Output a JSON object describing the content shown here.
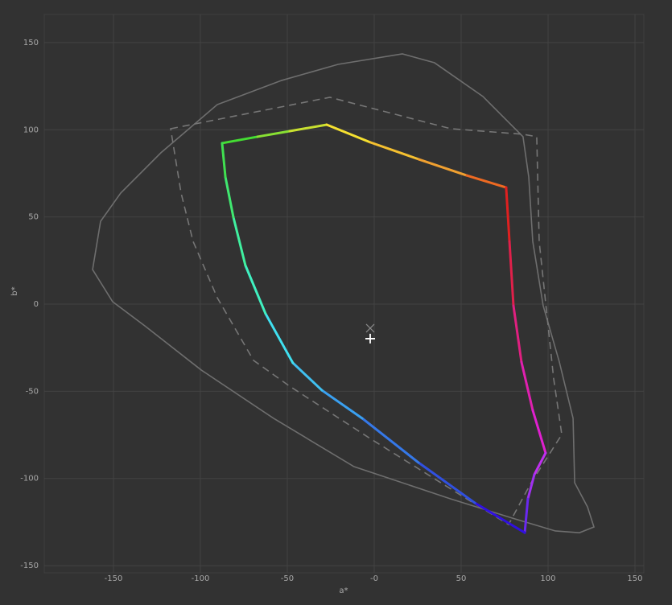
{
  "chart_data": {
    "type": "line",
    "x_label": "a*",
    "y_label": "b*",
    "xlim": [
      -189.8,
      155.1
    ],
    "ylim": [
      -154.1,
      166.1
    ],
    "xticks": [
      -150,
      -100,
      -50,
      {
        "value": 0,
        "label": "-0"
      },
      50,
      100,
      150
    ],
    "yticks": [
      -150,
      -100,
      -50,
      0,
      50,
      100,
      150
    ],
    "grid": true,
    "series": [
      {
        "color": "#6e6e6e",
        "dash": "solid",
        "closed": true,
        "x": [
          -162.0,
          -157.4,
          -145.8,
          -122.7,
          -90.3,
          -53.2,
          -20.8,
          16.2,
          34.7,
          62.5,
          85.6,
          88.9,
          91.2,
          97.2,
          106.5,
          114.4,
          115.3,
          122.7,
          126.4,
          118.1,
          104.2,
          81.0,
          44.0,
          -11.6,
          -57.9,
          -99.5,
          -131.9,
          -150.5
        ],
        "y": [
          19.8,
          47.5,
          63.7,
          86.8,
          114.4,
          128.3,
          137.5,
          143.5,
          138.4,
          119.1,
          96.0,
          72.9,
          36.0,
          -0.9,
          -33.2,
          -65.5,
          -102.4,
          -116.3,
          -127.8,
          -131.1,
          -130.1,
          -123.2,
          -111.7,
          -93.2,
          -65.5,
          -37.8,
          -12.5,
          1.4
        ]
      },
      {
        "color": "#767676",
        "dash": "dashed",
        "closed": true,
        "x": [
          -117.1,
          -25.5,
          44.0,
          85.6,
          93.5,
          94.9,
          103.2,
          107.9,
          90.3,
          77.3,
          53.2,
          -2.3,
          -48.6,
          -69.4,
          -90.3,
          -104.2,
          -111.1
        ],
        "y": [
          100.6,
          118.6,
          100.6,
          97.4,
          96.0,
          36.0,
          -42.5,
          -74.8,
          -102.4,
          -126.4,
          -111.7,
          -77.1,
          -47.1,
          -32.3,
          3.7,
          36.0,
          63.7
        ]
      },
      {
        "colors": [
          "#44dd33",
          "#88e033",
          "#c8e030",
          "#f5e030",
          "#f5c030",
          "#f0a030",
          "#ee6a22",
          "#e02020",
          "#e0204a",
          "#e02080",
          "#e020b0",
          "#e020d0",
          "#c030f0",
          "#a030f0",
          "#6a28f0",
          "#3010e0",
          "#3050e0",
          "#3578e8",
          "#3aa0f0",
          "#40c0f0",
          "#40e0f0",
          "#40f0c0",
          "#40f0a0",
          "#40e870",
          "#40e050"
        ],
        "dash": "solid",
        "closed": true,
        "x": [
          -87.5,
          -67.1,
          -48.6,
          -27.3,
          -2.3,
          25.5,
          53.2,
          75.9,
          77.8,
          80.1,
          84.7,
          91.2,
          98.6,
          92.1,
          88.4,
          86.6,
          57.9,
          25.5,
          -6.9,
          -30.1,
          -46.8,
          -62.5,
          -74.1,
          -81.0,
          -85.6
        ],
        "y": [
          92.3,
          96.0,
          99.2,
          102.9,
          92.8,
          83.1,
          73.8,
          66.9,
          36.0,
          -0.9,
          -33.2,
          -60.9,
          -85.4,
          -97.8,
          -111.7,
          -131.1,
          -114.0,
          -90.9,
          -65.5,
          -49.4,
          -33.7,
          -5.5,
          22.2,
          49.8,
          72.9
        ]
      }
    ],
    "points": [
      {
        "marker": "x",
        "color": "#8a8a8a",
        "x": -2.3,
        "y": -13.8
      },
      {
        "marker": "+",
        "color": "#ffffff",
        "x": -2.3,
        "y": -19.8
      }
    ]
  }
}
